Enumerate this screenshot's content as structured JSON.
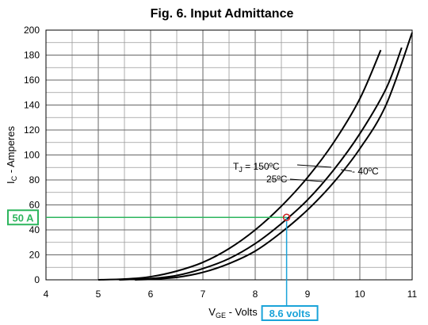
{
  "chart_data": {
    "type": "line",
    "title": "Fig. 6. Input Admittance",
    "xlabel": {
      "main": "V",
      "sub": "GE",
      "rest": " - Volts"
    },
    "ylabel": {
      "main": "I",
      "sub": "C",
      "rest": " - Amperes"
    },
    "xlim": [
      4,
      11
    ],
    "ylim": [
      0,
      200
    ],
    "xticks": [
      "4",
      "5",
      "6",
      "7",
      "8",
      "9",
      "10",
      "11"
    ],
    "yticks": [
      "0",
      "20",
      "40",
      "60",
      "80",
      "100",
      "120",
      "140",
      "160",
      "180",
      "200"
    ],
    "grid": true,
    "legend": "none",
    "series": [
      {
        "name": "150ºC",
        "x": [
          5.0,
          5.5,
          6.0,
          6.5,
          7.0,
          7.5,
          8.0,
          8.5,
          9.0,
          9.5,
          10.0,
          10.4
        ],
        "y": [
          0,
          0.6,
          2.5,
          7,
          14,
          25,
          40,
          59,
          82,
          110,
          145,
          184
        ]
      },
      {
        "name": "25ºC",
        "x": [
          5.4,
          6.0,
          6.5,
          7.0,
          7.5,
          8.0,
          8.5,
          9.0,
          9.5,
          10.0,
          10.5,
          10.8
        ],
        "y": [
          0,
          1,
          3.5,
          9,
          17,
          29,
          45,
          64,
          88,
          117,
          153,
          186
        ]
      },
      {
        "name": "- 40ºC",
        "x": [
          5.7,
          6.0,
          6.5,
          7.0,
          7.5,
          8.0,
          8.5,
          9.0,
          9.5,
          10.0,
          10.5,
          11.0
        ],
        "y": [
          0,
          0.5,
          2,
          6,
          13,
          23,
          38,
          56,
          78,
          105,
          140,
          198
        ]
      }
    ],
    "annotations": {
      "tj_label": "T",
      "tj_sub": "J",
      "tj_eq": " = ",
      "label_150": "150ºC",
      "label_25": "25ºC",
      "label_m40": "- 40ºC"
    },
    "callouts": {
      "ic_value": 50,
      "vge_value": 8.6,
      "ic_text": "50 A",
      "vge_text": "8.6 volts",
      "ic_color": "#2db55d",
      "vge_color": "#1aa3d9",
      "marker_color": "#cc2222"
    }
  }
}
